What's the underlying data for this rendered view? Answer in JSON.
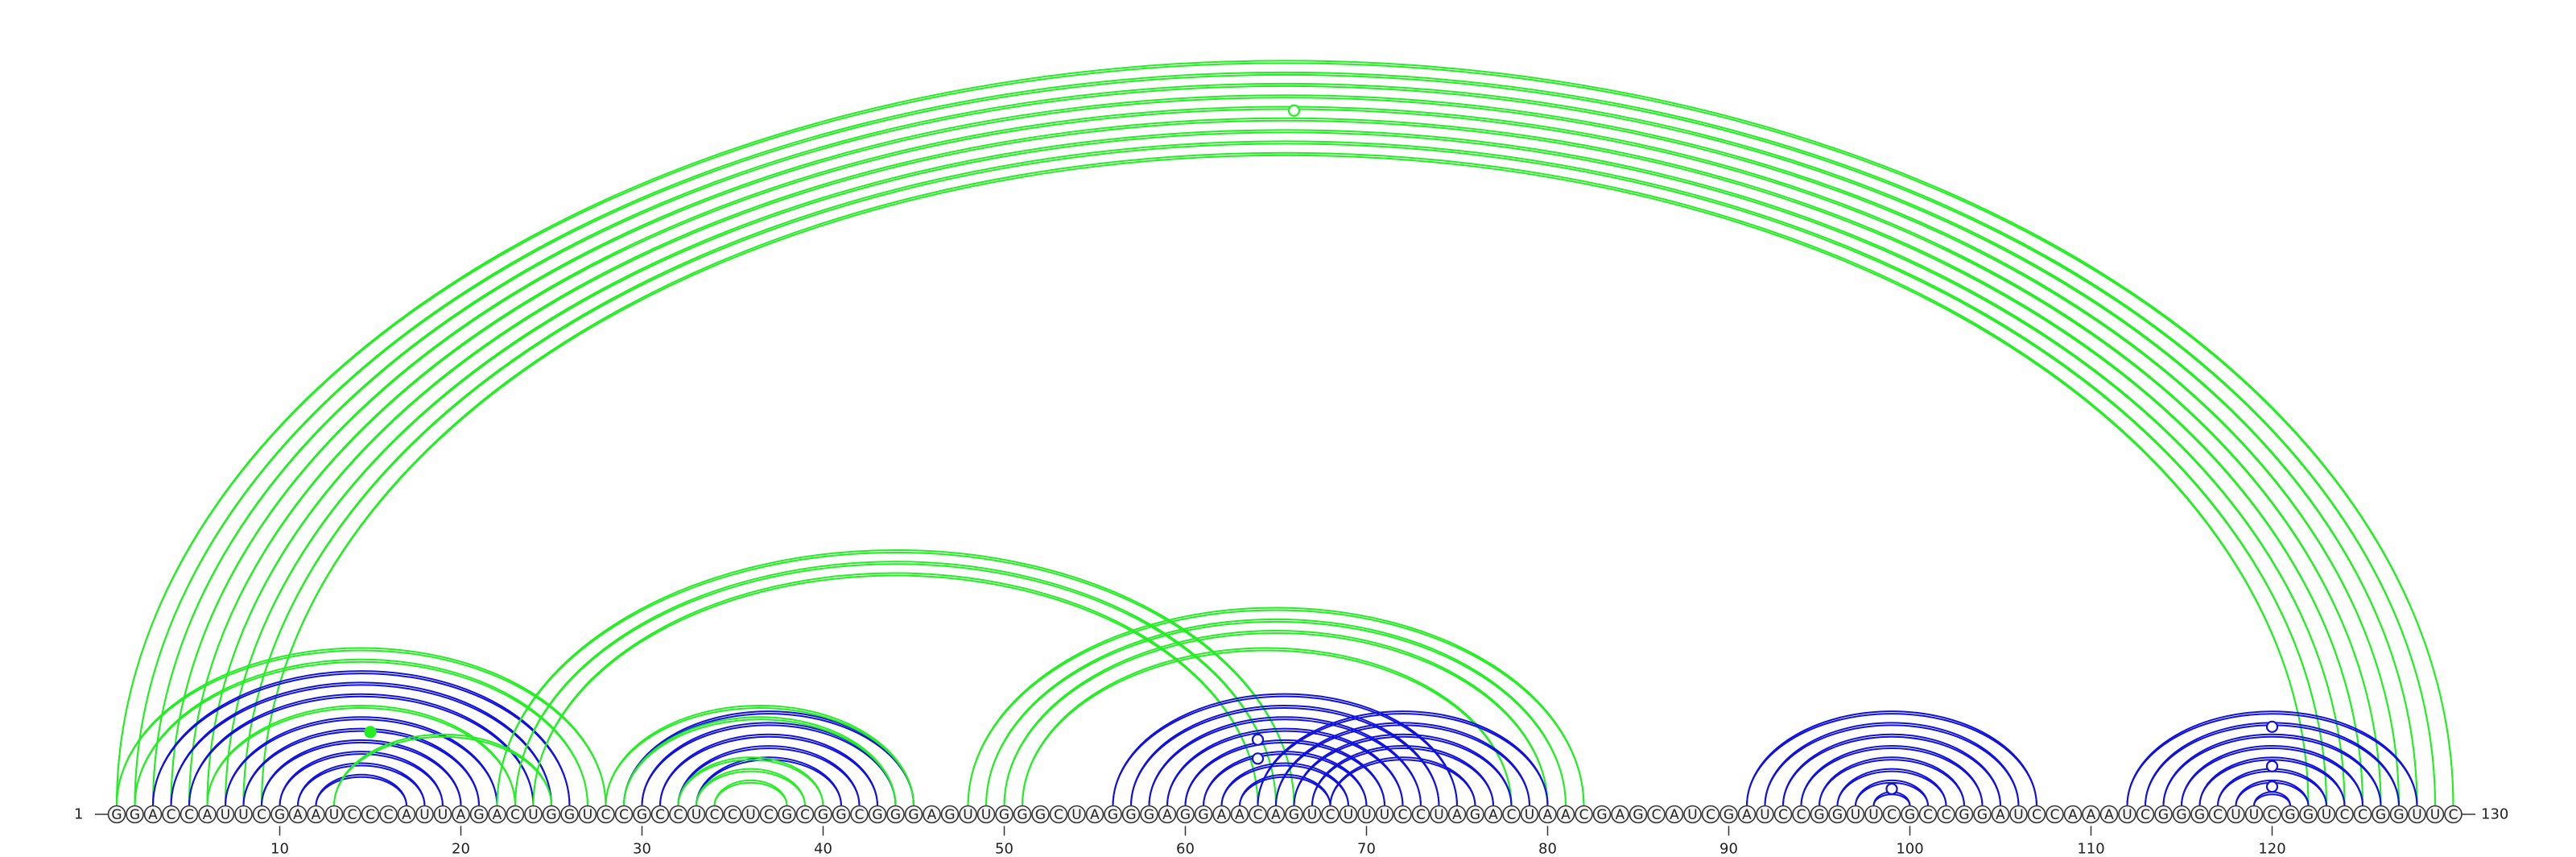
{
  "diagram": {
    "sequence": "GGACCAUUCGAAUCCCAUUAGACUGGUCCGCCUCCUCGCGGCGGGAGUUGGGCUAGGGAGGAACAGUCUUUCCUAGACUAACGAGCAUCGAUCCGGUUCGCCGGAUCCAAAUCGGGCUUCGGUCCGGUUC",
    "start_label": "1",
    "end_label": "130",
    "tick_labels": [
      "10",
      "20",
      "30",
      "40",
      "50",
      "60",
      "70",
      "80",
      "90",
      "100",
      "110",
      "120"
    ],
    "colors": {
      "green": "#22ee22",
      "blue": "#1111dd",
      "base_fill": "#f4f4f4",
      "base_stroke": "#333333"
    },
    "arc_sets": [
      {
        "name": "green-long",
        "color": "#22ee22",
        "pairs": [
          [
            1,
            130
          ],
          [
            2,
            129
          ],
          [
            3,
            128
          ],
          [
            4,
            127
          ],
          [
            5,
            126
          ],
          [
            6,
            125
          ],
          [
            7,
            124
          ],
          [
            8,
            123
          ],
          [
            9,
            122
          ]
        ]
      },
      {
        "name": "green-left-outer",
        "color": "#22ee22",
        "pairs": [
          [
            1,
            28
          ],
          [
            2,
            27
          ],
          [
            6,
            23
          ]
        ]
      },
      {
        "name": "blue-left",
        "color": "#1111dd",
        "pairs": [
          [
            3,
            26
          ],
          [
            4,
            25
          ],
          [
            5,
            24
          ],
          [
            7,
            22
          ],
          [
            8,
            21
          ],
          [
            9,
            20
          ],
          [
            10,
            19
          ],
          [
            11,
            18
          ],
          [
            12,
            17
          ]
        ]
      },
      {
        "name": "green-left-inner",
        "color": "#22ee22",
        "pairs": [
          [
            13,
            25
          ]
        ]
      },
      {
        "name": "green-bridge-1",
        "color": "#22ee22",
        "pairs": [
          [
            22,
            66
          ],
          [
            23,
            65
          ],
          [
            24,
            64
          ]
        ]
      },
      {
        "name": "blue-left-mid",
        "color": "#1111dd",
        "pairs": [
          [
            29,
            45
          ],
          [
            30,
            44
          ],
          [
            31,
            43
          ],
          [
            32,
            42
          ],
          [
            33,
            41
          ]
        ]
      },
      {
        "name": "green-left-mid",
        "color": "#22ee22",
        "pairs": [
          [
            28,
            45
          ],
          [
            29,
            44
          ],
          [
            32,
            40
          ],
          [
            33,
            39
          ],
          [
            34,
            38
          ]
        ]
      },
      {
        "name": "green-bridge-2",
        "color": "#22ee22",
        "pairs": [
          [
            48,
            82
          ],
          [
            49,
            81
          ],
          [
            50,
            80
          ],
          [
            51,
            78
          ]
        ]
      },
      {
        "name": "blue-center",
        "color": "#1111dd",
        "pairs": [
          [
            56,
            75
          ],
          [
            57,
            74
          ],
          [
            58,
            73
          ],
          [
            59,
            72
          ],
          [
            60,
            71
          ],
          [
            61,
            70
          ],
          [
            62,
            69
          ],
          [
            63,
            68
          ]
        ]
      },
      {
        "name": "blue-center-right",
        "color": "#1111dd",
        "pairs": [
          [
            64,
            80
          ],
          [
            65,
            79
          ],
          [
            66,
            78
          ],
          [
            67,
            77
          ],
          [
            68,
            76
          ]
        ]
      },
      {
        "name": "blue-right-mid",
        "color": "#1111dd",
        "pairs": [
          [
            91,
            107
          ],
          [
            92,
            106
          ],
          [
            93,
            105
          ],
          [
            94,
            104
          ],
          [
            95,
            103
          ],
          [
            96,
            102
          ],
          [
            97,
            101
          ],
          [
            98,
            100
          ]
        ]
      },
      {
        "name": "blue-right",
        "color": "#1111dd",
        "pairs": [
          [
            112,
            128
          ],
          [
            113,
            127
          ],
          [
            114,
            126
          ],
          [
            115,
            125
          ],
          [
            116,
            124
          ],
          [
            117,
            123
          ],
          [
            118,
            122
          ],
          [
            119,
            121
          ]
        ]
      }
    ],
    "markers": [
      {
        "base": 66,
        "color": "#22ee22",
        "filled": false,
        "level": 0.92
      },
      {
        "base": 15,
        "color": "#22ee22",
        "filled": true,
        "level": 0.1
      },
      {
        "base": 64,
        "color": "#1111dd",
        "filled": false,
        "level": 0.09
      },
      {
        "base": 64,
        "color": "#1111dd",
        "filled": false,
        "level": 0.065
      },
      {
        "base": 99,
        "color": "#1111dd",
        "filled": false,
        "level": 0.025
      },
      {
        "base": 120,
        "color": "#1111dd",
        "filled": false,
        "level": 0.107
      },
      {
        "base": 120,
        "color": "#1111dd",
        "filled": false,
        "level": 0.055
      },
      {
        "base": 120,
        "color": "#1111dd",
        "filled": false,
        "level": 0.028
      }
    ]
  }
}
